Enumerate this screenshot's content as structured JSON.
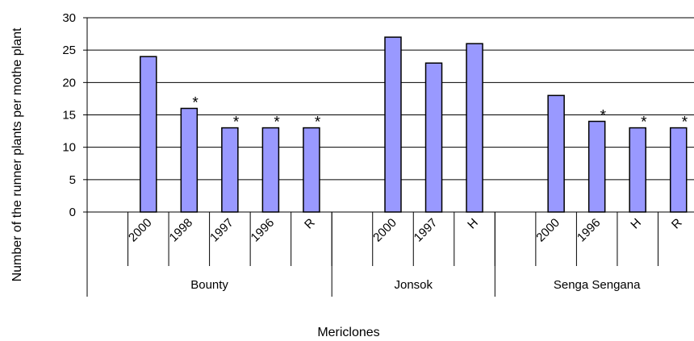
{
  "chart_data": {
    "type": "bar",
    "xlabel": "Mericlones",
    "ylabel": "Number of the runner plants per mothe plant",
    "ylim": [
      0,
      30
    ],
    "yticks": [
      "0",
      "5",
      "10",
      "15",
      "20",
      "25",
      "30"
    ],
    "grid": true,
    "legend": "none",
    "bar_color": "#9999ff",
    "groups": [
      {
        "name": "Bounty",
        "categories": [
          "",
          "2000",
          "1998",
          "1997",
          "1996",
          "R"
        ],
        "values": [
          null,
          24,
          16,
          13,
          13,
          13
        ],
        "marks": [
          "",
          "",
          "*",
          "*",
          "*",
          "*"
        ]
      },
      {
        "name": "Jonsok",
        "categories": [
          "",
          "2000",
          "1997",
          "H"
        ],
        "values": [
          null,
          27,
          23,
          26
        ],
        "marks": [
          "",
          "",
          "",
          ""
        ]
      },
      {
        "name": "Senga Sengana",
        "categories": [
          "",
          "2000",
          "1996",
          "H",
          "R"
        ],
        "values": [
          null,
          18,
          14,
          13,
          13
        ],
        "marks": [
          "",
          "",
          "*",
          "*",
          "*"
        ]
      }
    ]
  }
}
